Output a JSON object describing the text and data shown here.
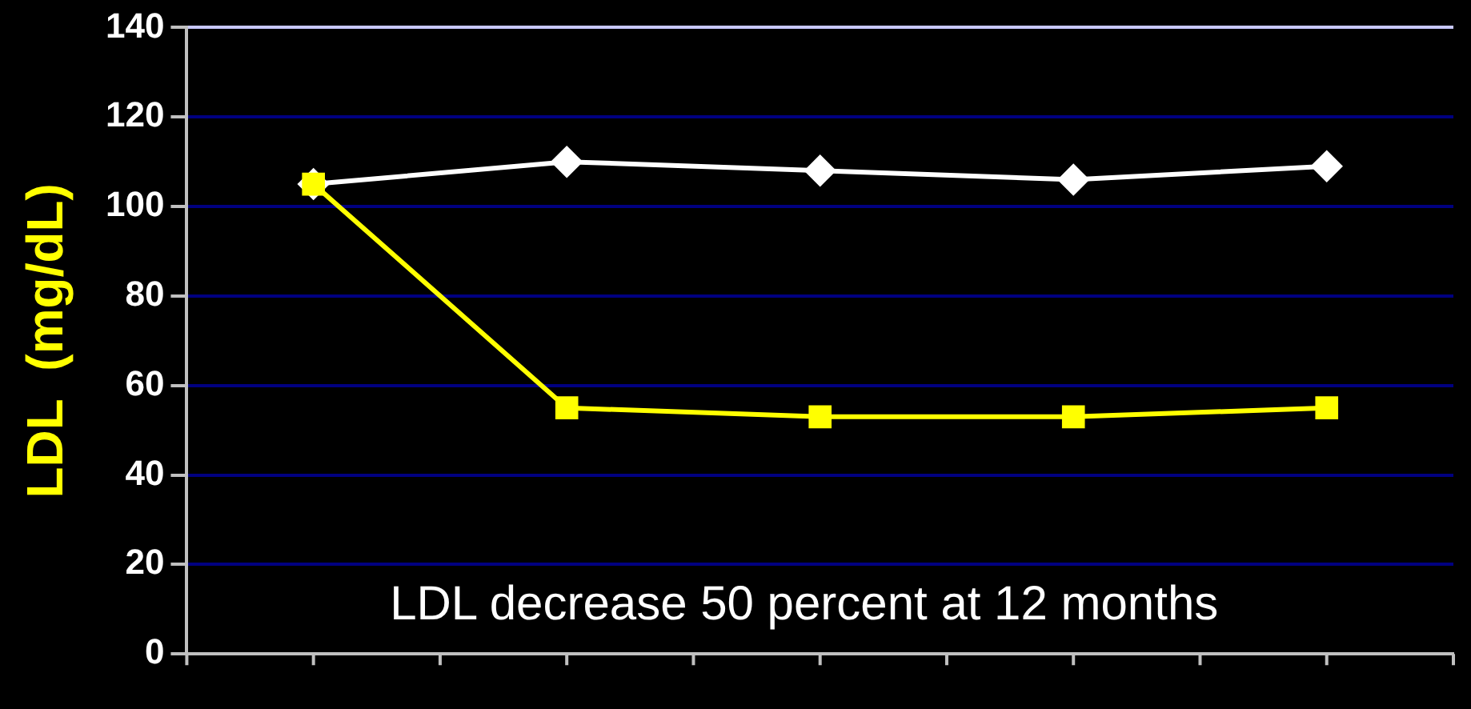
{
  "chart_data": {
    "type": "line",
    "ylabel": "LDL  (mg/dL)",
    "categories": [
      null,
      null,
      null,
      null,
      null
    ],
    "series": [
      {
        "color": "#ffffff",
        "marker": "diamond",
        "values": [
          105,
          110,
          108,
          106,
          109
        ]
      },
      {
        "color": "#ffff00",
        "marker": "square",
        "values": [
          105,
          55,
          53,
          53,
          55
        ]
      }
    ],
    "ylim": [
      0,
      140
    ],
    "yticks": [
      0,
      20,
      40,
      60,
      80,
      100,
      120,
      140
    ],
    "grid": "y",
    "legend": false,
    "annotations": [
      "LDL decrease 50 percent at 12 months"
    ]
  }
}
